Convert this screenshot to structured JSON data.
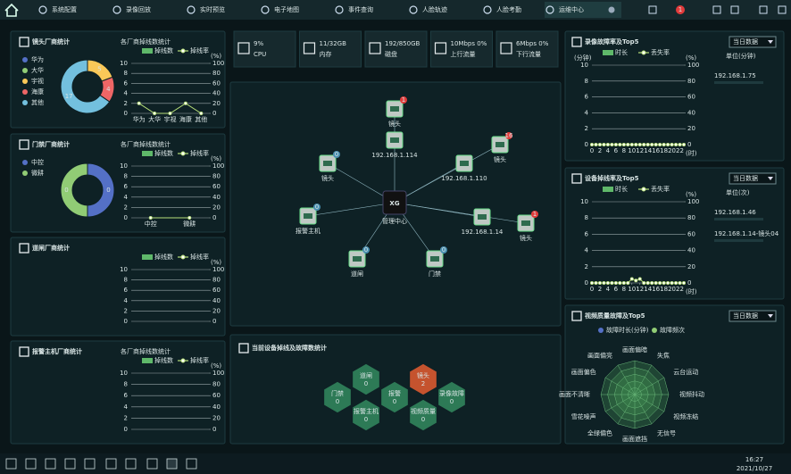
{
  "nav": {
    "items": [
      "系统配置",
      "录像回放",
      "实时预览",
      "电子地图",
      "事件查询",
      "人脸轨迹",
      "人脸考勤",
      "运维中心"
    ],
    "active": 7,
    "alert_count": 1
  },
  "stats": [
    {
      "value": "9%",
      "label": "CPU"
    },
    {
      "value": "11/32GB",
      "label": "内存"
    },
    {
      "value": "192/850GB",
      "label": "磁盘"
    },
    {
      "value": "10Mbps 0%",
      "label": "上行流量"
    },
    {
      "value": "6Mbps 0%",
      "label": "下行流量"
    }
  ],
  "left_panels": [
    {
      "title": "镜头厂商统计",
      "pie": {
        "type": "pie",
        "categories": [
          "华为",
          "大华",
          "宇视",
          "海康",
          "其他"
        ],
        "values": [
          0,
          0,
          5,
          4,
          17
        ],
        "colors": [
          "#5470c6",
          "#91cc75",
          "#fac858",
          "#ee6666",
          "#73c0de"
        ]
      },
      "chart": {
        "type": "bar",
        "title": "各厂商掉线数统计",
        "categories": [
          "华为",
          "大华",
          "宇视",
          "海康",
          "其他"
        ],
        "series": [
          {
            "name": "掉线数",
            "color": "#5fb86a",
            "values": [
              0,
              0,
              0,
              0,
              0
            ]
          },
          {
            "name": "掉线率",
            "color": "#b8e07a",
            "axis": "y2",
            "values": [
              20,
              0,
              0,
              20,
              0
            ]
          }
        ],
        "ylim": [
          0,
          10
        ],
        "yticks": [
          0,
          2,
          4,
          6,
          8,
          10
        ],
        "y2lim": [
          0,
          100
        ],
        "y2ticks": [
          0,
          20,
          40,
          60,
          80,
          100
        ],
        "y2_label": "(%)",
        "grid": true
      }
    },
    {
      "title": "门禁厂商统计",
      "pie": {
        "type": "pie",
        "categories": [
          "中控",
          "微耕"
        ],
        "values": [
          0,
          0
        ],
        "colors": [
          "#5470c6",
          "#91cc75"
        ]
      },
      "chart": {
        "type": "bar",
        "title": "各厂商掉线数统计",
        "categories": [
          "中控",
          "微耕"
        ],
        "series": [
          {
            "name": "掉线数",
            "color": "#5fb86a",
            "values": [
              0,
              0
            ]
          },
          {
            "name": "掉线率",
            "color": "#b8e07a",
            "axis": "y2",
            "values": [
              0,
              0
            ]
          }
        ],
        "ylim": [
          0,
          10
        ],
        "yticks": [
          0,
          2,
          4,
          6,
          8,
          10
        ],
        "y2lim": [
          0,
          100
        ],
        "y2ticks": [
          0,
          20,
          40,
          60,
          80,
          100
        ],
        "y2_label": "(%)",
        "grid": true
      }
    },
    {
      "title": "道闸厂商统计",
      "chart": {
        "type": "bar",
        "categories": [],
        "series": [
          {
            "name": "掉线数",
            "color": "#5fb86a",
            "values": []
          },
          {
            "name": "掉线率",
            "color": "#b8e07a",
            "axis": "y2",
            "values": []
          }
        ],
        "ylim": [
          0,
          10
        ],
        "yticks": [
          0,
          2,
          4,
          6,
          8,
          10
        ],
        "y2lim": [
          0,
          100
        ],
        "y2ticks": [
          0,
          20,
          40,
          60,
          80,
          100
        ],
        "y2_label": "(%)",
        "grid": true
      }
    },
    {
      "title": "报警主机厂商统计",
      "chart": {
        "type": "bar",
        "title": "各厂商掉线数统计",
        "categories": [],
        "series": [
          {
            "name": "掉线数",
            "color": "#5fb86a",
            "values": []
          },
          {
            "name": "掉线率",
            "color": "#b8e07a",
            "axis": "y2",
            "values": []
          }
        ],
        "ylim": [
          0,
          10
        ],
        "yticks": [
          0,
          2,
          4,
          6,
          8,
          10
        ],
        "y2lim": [
          0,
          100
        ],
        "y2ticks": [
          0,
          20,
          40,
          60,
          80,
          100
        ],
        "y2_label": "(%)",
        "grid": true
      }
    }
  ],
  "topology": {
    "center": {
      "logo": "XG",
      "label": "管理中心"
    },
    "nodes": [
      {
        "label": "镜头",
        "badge": 1
      },
      {
        "label": "192.168.1.114",
        "badge": null
      },
      {
        "label": "镜头",
        "badge": 0
      },
      {
        "label": "镜头",
        "badge": 16
      },
      {
        "label": "192.168.1.110",
        "badge": null
      },
      {
        "label": "报警主机",
        "badge": 0
      },
      {
        "label": "192.168.1.14",
        "badge": null
      },
      {
        "label": "镜头",
        "badge": 1
      },
      {
        "label": "道闸",
        "badge": 0
      },
      {
        "label": "门禁",
        "badge": 0
      }
    ]
  },
  "fault_stats": {
    "title": "当前设备掉线及故障数统计",
    "items": [
      {
        "label": "道闸",
        "value": 0
      },
      {
        "label": "镜头",
        "value": 2
      },
      {
        "label": "门禁",
        "value": 0
      },
      {
        "label": "报警",
        "value": 0
      },
      {
        "label": "录像故障",
        "value": 0
      },
      {
        "label": "报警主机",
        "value": 0
      },
      {
        "label": "视频质量",
        "value": 0
      }
    ]
  },
  "right_panels": [
    {
      "title": "录像故障率及Top5",
      "dropdown": "当日数据",
      "unit": "单位(分钟)",
      "top5": [
        "192.168.1.75"
      ],
      "chart": {
        "type": "bar",
        "x": [
          0,
          1,
          2,
          3,
          4,
          5,
          6,
          7,
          8,
          9,
          10,
          11,
          12,
          13,
          14,
          15,
          16,
          17,
          18,
          19,
          20,
          21,
          22,
          23
        ],
        "xlim": [
          0,
          23
        ],
        "xticks": [
          0,
          2,
          4,
          6,
          8,
          10,
          12,
          14,
          16,
          18,
          20,
          22
        ],
        "series": [
          {
            "name": "时长",
            "color": "#5fb86a",
            "values": [
              0,
              0,
              0,
              0,
              0,
              0,
              0,
              0,
              0,
              0,
              0,
              0,
              0,
              0,
              0,
              0,
              0,
              0,
              0,
              0,
              0,
              0,
              0,
              0
            ]
          },
          {
            "name": "丢失率",
            "color": "#b8e07a",
            "axis": "y2",
            "values": [
              0,
              0,
              0,
              0,
              0,
              0,
              0,
              0,
              0,
              0,
              0,
              0,
              0,
              0,
              0,
              0,
              0,
              0,
              0,
              0,
              0,
              0,
              0,
              0
            ]
          }
        ],
        "ylim": [
          0,
          10
        ],
        "yticks": [
          0,
          2,
          4,
          6,
          8,
          10
        ],
        "y2lim": [
          0,
          100
        ],
        "y2ticks": [
          0,
          20,
          40,
          60,
          80,
          100
        ],
        "y_label": "(分钟)",
        "y2_label": "(%)",
        "x_label": "(时)",
        "grid": true
      }
    },
    {
      "title": "设备掉线率及Top5",
      "dropdown": "当日数据",
      "unit": "单位(次)",
      "top5": [
        "192.168.1.46",
        "192.168.1.14-镜头04"
      ],
      "chart": {
        "type": "bar",
        "x": [
          0,
          1,
          2,
          3,
          4,
          5,
          6,
          7,
          8,
          9,
          10,
          11,
          12,
          13,
          14,
          15,
          16,
          17,
          18,
          19,
          20,
          21,
          22,
          23
        ],
        "xlim": [
          0,
          23
        ],
        "xticks": [
          0,
          2,
          4,
          6,
          8,
          10,
          12,
          14,
          16,
          18,
          20,
          22
        ],
        "series": [
          {
            "name": "时长",
            "color": "#5fb86a",
            "values": [
              0,
              0,
              0,
              0,
              0,
              0,
              0,
              0,
              0,
              0,
              0,
              0,
              0,
              0,
              0,
              0,
              0,
              0,
              0,
              0,
              0,
              0,
              0,
              0
            ]
          },
          {
            "name": "丢失率",
            "color": "#b8e07a",
            "axis": "y2",
            "values": [
              0,
              0,
              0,
              0,
              0,
              0,
              0,
              0,
              0,
              0,
              5,
              3,
              5,
              0,
              0,
              0,
              0,
              0,
              0,
              0,
              0,
              0,
              0,
              0
            ]
          }
        ],
        "ylim": [
          0,
          10
        ],
        "yticks": [
          0,
          2,
          4,
          6,
          8,
          10
        ],
        "y2lim": [
          0,
          100
        ],
        "y2ticks": [
          0,
          20,
          40,
          60,
          80,
          100
        ],
        "y2_label": "(%)",
        "x_label": "(时)",
        "grid": true
      }
    },
    {
      "title": "视频质量故障及Top5",
      "dropdown": "当日数据",
      "chart": {
        "type": "radar",
        "indicators": [
          "画面偏暗",
          "失焦",
          "云台运动",
          "视频抖动",
          "视频冻结",
          "无信号",
          "画面遮挡",
          "全绿偏色",
          "雪花噪声",
          "画面不清晰",
          "画面偏色",
          "画面偏亮"
        ],
        "series": [
          {
            "name": "故障时长(分钟)",
            "color": "#5470c6",
            "values": [
              0,
              0,
              0,
              0,
              0,
              0,
              0,
              0,
              0,
              0,
              0,
              0
            ]
          },
          {
            "name": "故障频次",
            "color": "#91cc75",
            "values": [
              0,
              0,
              0,
              0,
              0,
              0,
              0,
              0,
              0,
              0,
              0,
              0
            ]
          }
        ]
      }
    }
  ],
  "taskbar": {
    "time": "16:27",
    "date": "2021/10/27"
  }
}
